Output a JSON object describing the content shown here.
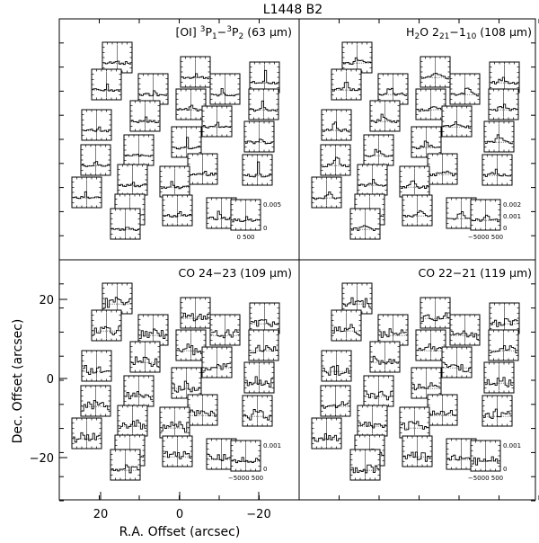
{
  "title": "L1448 B2",
  "axes": {
    "xlabel": "R.A. Offset (arcsec)",
    "ylabel": "Dec. Offset (arcsec)",
    "x_ticks": [
      "20",
      "0",
      "−20"
    ],
    "y_ticks": [
      "20",
      "0",
      "−20"
    ]
  },
  "chart_data": [
    {
      "type": "line",
      "panel": "top-left",
      "label_html": "[OI] <tspan dy=\"-5\" font-size=\"9\">3</tspan><tspan dy=\"5\">P</tspan><tspan dy=\"3\" font-size=\"9\">1</tspan><tspan dy=\"-3\">−</tspan><tspan dy=\"-5\" font-size=\"9\">3</tspan><tspan dy=\"5\">P</tspan><tspan dy=\"3\" font-size=\"9\">2</tspan><tspan dy=\"-3\"> (63 μm)</tspan>",
      "label_text": "[OI] 3P1−3P2 (63 μm)",
      "scale_labels": [
        "0.005",
        "0",
        "0  500"
      ],
      "profile": "narrow"
    },
    {
      "type": "line",
      "panel": "top-right",
      "label_html": "H<tspan dy=\"3\" font-size=\"9\">2</tspan><tspan dy=\"-3\">O 2</tspan><tspan dy=\"3\" font-size=\"9\">21</tspan><tspan dy=\"-3\">−1</tspan><tspan dy=\"3\" font-size=\"9\">10</tspan><tspan dy=\"-3\"> (108 μm)</tspan>",
      "label_text": "H2O 221−110 (108 μm)",
      "scale_labels": [
        "0.002",
        "0.001",
        "0",
        "−5000 500"
      ],
      "profile": "broad"
    },
    {
      "type": "line",
      "panel": "bottom-left",
      "label_html": "CO 24−23 (109 μm)",
      "label_text": "CO 24−23 (109 μm)",
      "scale_labels": [
        "0.001",
        "0",
        "−5000 500"
      ],
      "profile": "noisy"
    },
    {
      "type": "line",
      "panel": "bottom-right",
      "label_html": "CO 22−21 (119 μm)",
      "label_text": "CO 22−21 (119 μm)",
      "scale_labels": [
        "0.001",
        "0",
        "−5000 500"
      ],
      "profile": "noisy"
    }
  ]
}
